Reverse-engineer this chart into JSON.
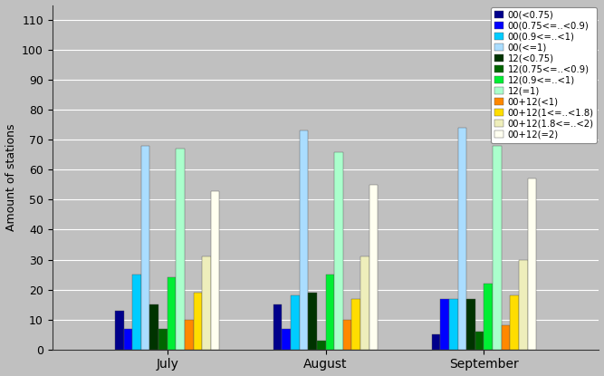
{
  "months": [
    "July",
    "August",
    "September"
  ],
  "series": [
    {
      "label": "00(<0.75)",
      "color": "#00008B",
      "values": [
        13,
        15,
        5
      ]
    },
    {
      "label": "00(0.75<=..<0.9)",
      "color": "#0000FF",
      "values": [
        7,
        7,
        17
      ]
    },
    {
      "label": "00(0.9<=..<1)",
      "color": "#00CCFF",
      "values": [
        25,
        18,
        17
      ]
    },
    {
      "label": "00(<=1)",
      "color": "#AADDFF",
      "values": [
        68,
        73,
        74
      ]
    },
    {
      "label": "12(<0.75)",
      "color": "#003300",
      "values": [
        15,
        19,
        17
      ]
    },
    {
      "label": "12(0.75<=..<0.9)",
      "color": "#006600",
      "values": [
        7,
        3,
        6
      ]
    },
    {
      "label": "12(0.9<=..<1)",
      "color": "#00EE33",
      "values": [
        24,
        25,
        22
      ]
    },
    {
      "label": "12(=1)",
      "color": "#AAFFCC",
      "values": [
        67,
        66,
        68
      ]
    },
    {
      "label": "00+12(<1)",
      "color": "#FF8800",
      "values": [
        10,
        10,
        8
      ]
    },
    {
      "label": "00+12(1<=..<1.8)",
      "color": "#FFDD00",
      "values": [
        19,
        17,
        18
      ]
    },
    {
      "label": "00+12(1.8<=..<2)",
      "color": "#EEEEBB",
      "values": [
        31,
        31,
        30
      ]
    },
    {
      "label": "00+12(=2)",
      "color": "#FFFFF0",
      "values": [
        53,
        55,
        57
      ]
    }
  ],
  "ylabel": "Amount of stations",
  "ylim": [
    0,
    115
  ],
  "yticks": [
    0,
    10,
    20,
    30,
    40,
    50,
    60,
    70,
    80,
    90,
    100,
    110
  ],
  "background_color": "#C0C0C0",
  "grid_color": "#FFFFFF",
  "fig_width": 6.67,
  "fig_height": 4.15,
  "dpi": 100
}
